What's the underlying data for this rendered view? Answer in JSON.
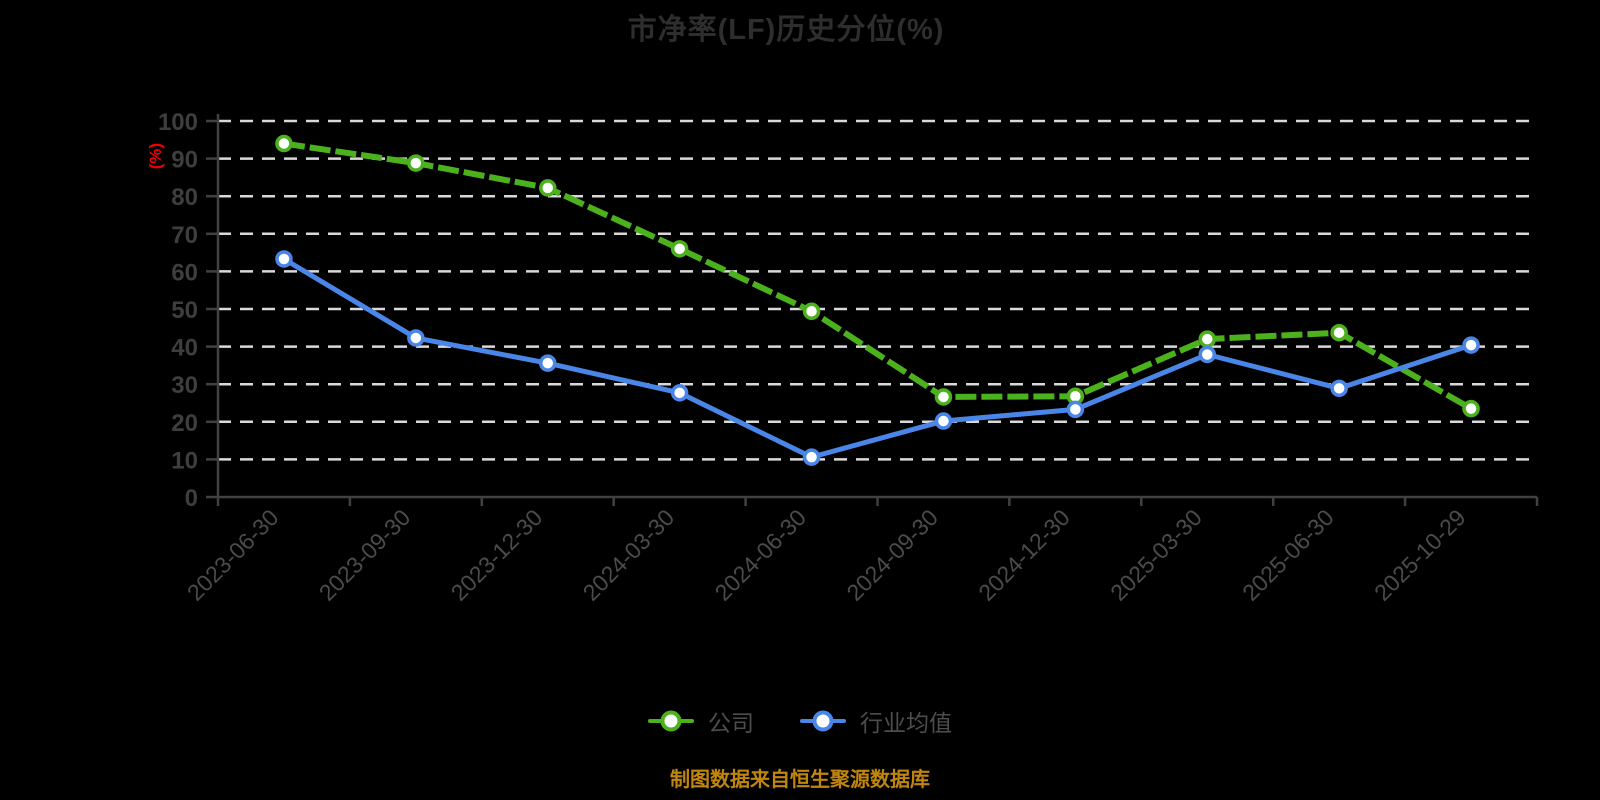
{
  "title": "市净率(LF)历史分位(%)",
  "caption": "制图数据来自恒生聚源数据库",
  "colors": {
    "background": "#000000",
    "company": "#4bb21e",
    "industry": "#4a86e8",
    "grid": "#d9d9d9",
    "axis": "#414141",
    "y_label": "#3e3e3e",
    "x_label": "#4b4b4b",
    "legend_text": "#4d4d4d",
    "title_text": "#2e2e2e",
    "unit_label": "#ec0000",
    "caption_text": "#c1860d"
  },
  "chart_data": {
    "type": "line",
    "title": "市净率(LF)历史分位(%)",
    "xlabel": "",
    "ylabel": "(%)",
    "ylim": [
      0,
      100
    ],
    "y_tick_step": 10,
    "grid": "horizontal-dashed",
    "legend_position": "bottom",
    "categories": [
      "2023-06-30",
      "2023-09-30",
      "2023-12-30",
      "2024-03-30",
      "2024-06-30",
      "2024-09-30",
      "2024-12-30",
      "2025-03-30",
      "2025-06-30",
      "2025-10-29"
    ],
    "series": [
      {
        "name": "公司",
        "color": "#4bb21e",
        "style": "dashed",
        "values": [
          94.0,
          88.8,
          82.2,
          66.0,
          49.4,
          26.6,
          26.8,
          42.0,
          43.7,
          23.5
        ]
      },
      {
        "name": "行业均值",
        "color": "#4a86e8",
        "style": "solid",
        "values": [
          63.3,
          42.3,
          35.6,
          27.7,
          10.6,
          20.2,
          23.3,
          37.9,
          28.9,
          40.4
        ]
      }
    ]
  }
}
